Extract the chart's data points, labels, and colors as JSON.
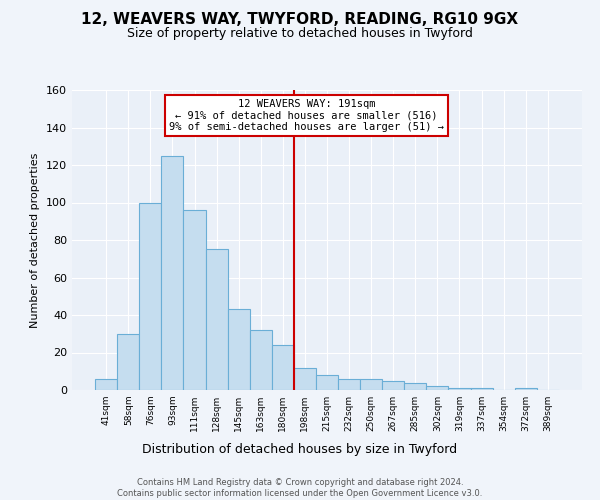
{
  "title": "12, WEAVERS WAY, TWYFORD, READING, RG10 9GX",
  "subtitle": "Size of property relative to detached houses in Twyford",
  "xlabel": "Distribution of detached houses by size in Twyford",
  "ylabel": "Number of detached properties",
  "bar_labels": [
    "41sqm",
    "58sqm",
    "76sqm",
    "93sqm",
    "111sqm",
    "128sqm",
    "145sqm",
    "163sqm",
    "180sqm",
    "198sqm",
    "215sqm",
    "232sqm",
    "250sqm",
    "267sqm",
    "285sqm",
    "302sqm",
    "319sqm",
    "337sqm",
    "354sqm",
    "372sqm",
    "389sqm"
  ],
  "bar_values": [
    6,
    30,
    100,
    125,
    96,
    75,
    43,
    32,
    24,
    12,
    8,
    6,
    6,
    5,
    4,
    2,
    1,
    1,
    0,
    1,
    0
  ],
  "bar_color": "#c5ddef",
  "bar_edge_color": "#6aaed6",
  "vline_x": 8.5,
  "vline_color": "#cc0000",
  "annotation_text": "12 WEAVERS WAY: 191sqm\n← 91% of detached houses are smaller (516)\n9% of semi-detached houses are larger (51) →",
  "annotation_box_color": "#ffffff",
  "annotation_box_edge_color": "#cc0000",
  "ylim": [
    0,
    160
  ],
  "yticks": [
    0,
    20,
    40,
    60,
    80,
    100,
    120,
    140,
    160
  ],
  "footer_text": "Contains HM Land Registry data © Crown copyright and database right 2024.\nContains public sector information licensed under the Open Government Licence v3.0.",
  "background_color": "#f0f4fa",
  "plot_background_color": "#eaf0f8",
  "grid_color": "#ffffff"
}
